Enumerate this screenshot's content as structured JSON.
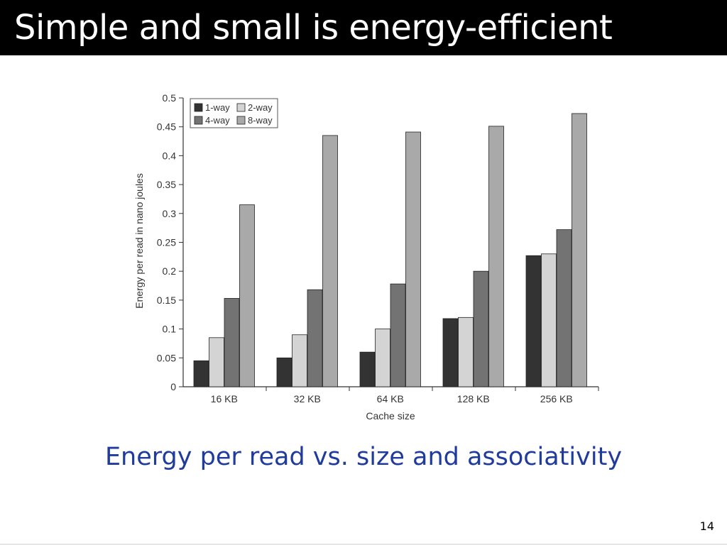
{
  "slide": {
    "title": "Simple and small is energy-efficient",
    "caption": "Energy per read vs. size and associativity",
    "page_number": "14"
  },
  "chart_data": {
    "type": "bar",
    "title": "",
    "xlabel": "Cache size",
    "ylabel": "Energy per read in nano joules",
    "categories": [
      "16 KB",
      "32 KB",
      "64 KB",
      "128 KB",
      "256 KB"
    ],
    "ylim": [
      0,
      0.5
    ],
    "yticks": [
      "0",
      "0.05",
      "0.1",
      "0.15",
      "0.2",
      "0.25",
      "0.3",
      "0.35",
      "0.4",
      "0.45",
      "0.5"
    ],
    "grid": false,
    "legend_position": "top-left",
    "series": [
      {
        "name": "1-way",
        "color": "#333333",
        "values": [
          0.045,
          0.05,
          0.06,
          0.118,
          0.227
        ]
      },
      {
        "name": "2-way",
        "color": "#d4d4d4",
        "values": [
          0.085,
          0.09,
          0.1,
          0.12,
          0.23
        ]
      },
      {
        "name": "4-way",
        "color": "#737373",
        "values": [
          0.153,
          0.168,
          0.178,
          0.2,
          0.272
        ]
      },
      {
        "name": "8-way",
        "color": "#a9a9a9",
        "values": [
          0.315,
          0.435,
          0.441,
          0.451,
          0.473
        ]
      }
    ]
  }
}
